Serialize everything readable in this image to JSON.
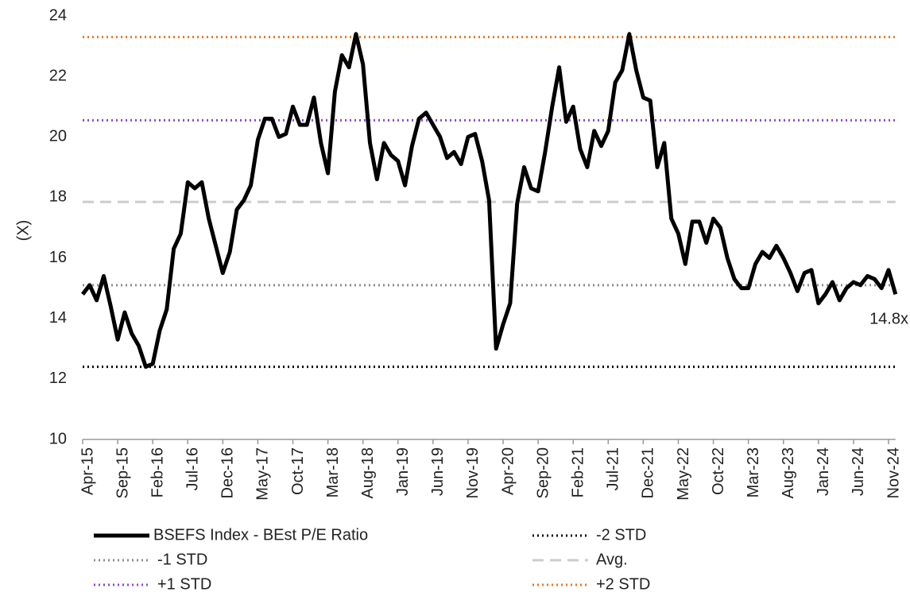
{
  "chart_data": {
    "type": "line",
    "y_label": "(X)",
    "categories": [
      "Apr-15",
      null,
      null,
      null,
      null,
      "Sep-15",
      null,
      null,
      null,
      null,
      "Feb-16",
      null,
      null,
      null,
      null,
      "Jul-16",
      null,
      null,
      null,
      null,
      "Dec-16",
      null,
      null,
      null,
      null,
      "May-17",
      null,
      null,
      null,
      null,
      "Oct-17",
      null,
      null,
      null,
      null,
      "Mar-18",
      null,
      null,
      null,
      null,
      "Aug-18",
      null,
      null,
      null,
      null,
      "Jan-19",
      null,
      null,
      null,
      null,
      "Jun-19",
      null,
      null,
      null,
      null,
      "Nov-19",
      null,
      null,
      null,
      null,
      "Apr-20",
      null,
      null,
      null,
      null,
      "Sep-20",
      null,
      null,
      null,
      null,
      "Feb-21",
      null,
      null,
      null,
      null,
      "Jul-21",
      null,
      null,
      null,
      null,
      "Dec-21",
      null,
      null,
      null,
      null,
      "May-22",
      null,
      null,
      null,
      null,
      "Oct-22",
      null,
      null,
      null,
      null,
      "Mar-23",
      null,
      null,
      null,
      null,
      "Aug-23",
      null,
      null,
      null,
      null,
      "Jan-24",
      null,
      null,
      null,
      null,
      "Jun-24",
      null,
      null,
      null,
      null,
      "Nov-24",
      null
    ],
    "series": [
      {
        "name": "BSEFS Index - BEst P/E Ratio",
        "color": "#000000",
        "values": [
          14.8,
          15.1,
          14.6,
          15.4,
          14.4,
          13.3,
          14.2,
          13.5,
          13.1,
          12.4,
          12.5,
          13.6,
          14.3,
          16.3,
          16.8,
          18.5,
          18.3,
          18.5,
          17.3,
          16.4,
          15.5,
          16.2,
          17.6,
          17.9,
          18.4,
          19.9,
          20.6,
          20.6,
          20.0,
          20.1,
          21.0,
          20.4,
          20.4,
          21.3,
          19.8,
          18.8,
          21.5,
          22.7,
          22.3,
          23.4,
          22.4,
          19.8,
          18.6,
          19.8,
          19.4,
          19.2,
          18.4,
          19.7,
          20.6,
          20.8,
          20.4,
          20.0,
          19.3,
          19.5,
          19.1,
          20.0,
          20.1,
          19.2,
          17.9,
          13.0,
          13.8,
          14.5,
          17.8,
          19.0,
          18.3,
          18.2,
          19.5,
          21.0,
          22.3,
          20.5,
          21.0,
          19.6,
          19.0,
          20.2,
          19.7,
          20.2,
          21.8,
          22.2,
          23.4,
          22.2,
          21.3,
          21.2,
          19.0,
          19.8,
          17.3,
          16.8,
          15.8,
          17.2,
          17.2,
          16.5,
          17.3,
          17.0,
          16.0,
          15.3,
          15.0,
          15.0,
          15.8,
          16.2,
          16.0,
          16.4,
          16.0,
          15.5,
          14.9,
          15.5,
          15.6,
          14.5,
          14.8,
          15.2,
          14.6,
          15.0,
          15.2,
          15.1,
          15.4,
          15.3,
          15.0,
          15.6,
          14.8
        ]
      }
    ],
    "reference_lines": [
      {
        "name": "-2 STD",
        "value": 12.4,
        "color": "#000000",
        "style": "dotted"
      },
      {
        "name": "-1 STD",
        "value": 15.1,
        "color": "#8c8c8c",
        "style": "dotted"
      },
      {
        "name": "Avg.",
        "value": 17.85,
        "color": "#cccccc",
        "style": "dashed"
      },
      {
        "name": "+1 STD",
        "value": 20.55,
        "color": "#8e44dd",
        "style": "dotted"
      },
      {
        "name": "+2 STD",
        "value": 23.3,
        "color": "#e87722",
        "style": "dotted"
      }
    ],
    "annotations": [
      {
        "text": "14.8x",
        "value": 14.8
      }
    ],
    "ylim": [
      10,
      24
    ],
    "yticks": [
      10,
      12,
      14,
      16,
      18,
      20,
      22,
      24
    ],
    "grid": false
  }
}
